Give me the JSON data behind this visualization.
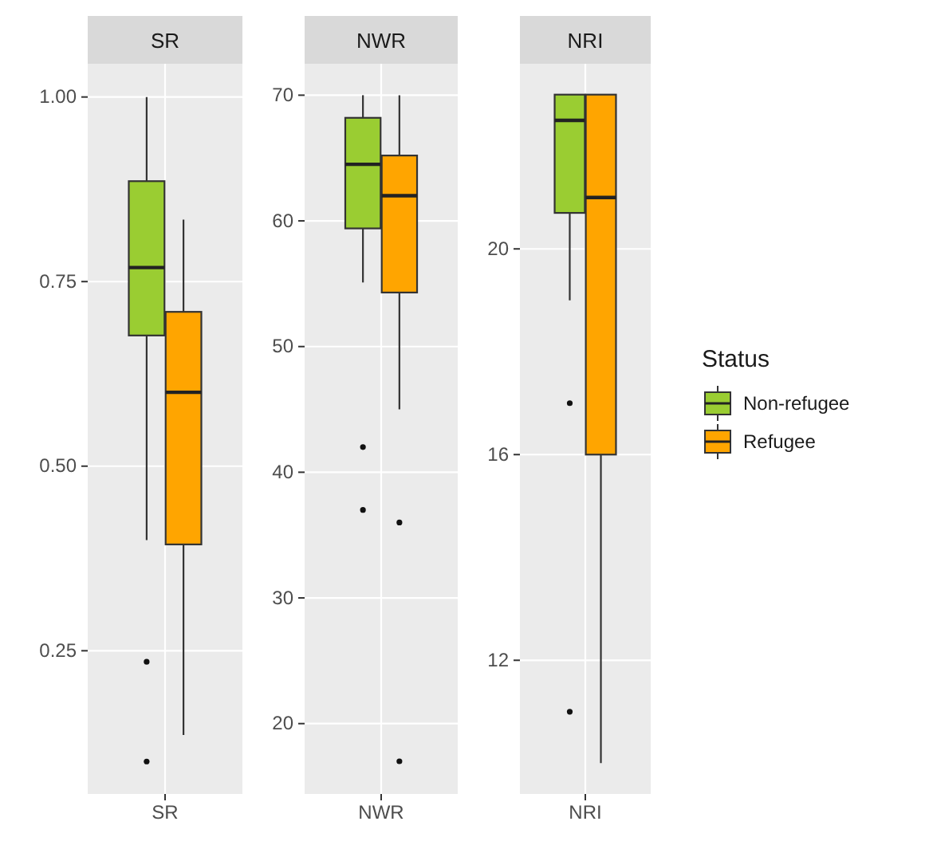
{
  "chart_data": [
    {
      "type": "box",
      "title": "SR",
      "categories": [
        "SR"
      ],
      "ylim": [
        0.056,
        1.045
      ],
      "yticks": [
        {
          "value": 0.25,
          "label": "0.25"
        },
        {
          "value": 0.5,
          "label": "0.50"
        },
        {
          "value": 0.75,
          "label": "0.75"
        },
        {
          "value": 1,
          "label": "1.00"
        }
      ],
      "grid": true,
      "legend": false,
      "series": [
        {
          "color": "#9acd32",
          "boxes": [
            {
              "low": 0.4,
              "q1": 0.677,
              "median": 0.769,
              "q3": 0.886,
              "high": 1.0,
              "outliers": [
                0.235,
                0.1
              ]
            }
          ]
        },
        {
          "color": "#ffa500",
          "boxes": [
            {
              "low": 0.136,
              "q1": 0.394,
              "median": 0.6,
              "q3": 0.709,
              "high": 0.834
            }
          ]
        }
      ]
    },
    {
      "type": "box",
      "title": "NWR",
      "categories": [
        "NWR"
      ],
      "ylim": [
        14.4,
        72.5
      ],
      "yticks": [
        20,
        30,
        40,
        50,
        60,
        70
      ],
      "grid": true,
      "legend": false,
      "series": [
        {
          "color": "#9acd32",
          "boxes": [
            {
              "low": 55.1,
              "q1": 59.4,
              "median": 64.5,
              "q3": 68.2,
              "high": 70,
              "outliers": [
                42,
                37
              ]
            }
          ]
        },
        {
          "color": "#ffa500",
          "boxes": [
            {
              "low": 45,
              "q1": 54.3,
              "median": 62,
              "q3": 65.2,
              "high": 70,
              "outliers": [
                36,
                17
              ]
            }
          ]
        }
      ]
    },
    {
      "type": "box",
      "title": "NRI",
      "categories": [
        "NRI"
      ],
      "ylim": [
        9.4,
        23.6
      ],
      "yticks": [
        12,
        16,
        20
      ],
      "grid": true,
      "legend": "right",
      "legend_title": "Status",
      "series": [
        {
          "name": "Non-refugee",
          "color": "#9acd32",
          "boxes": [
            {
              "low": 19,
              "q1": 20.7,
              "median": 22.5,
              "q3": 23,
              "high": 23,
              "outliers": [
                17,
                11
              ]
            }
          ]
        },
        {
          "name": "Refugee",
          "color": "#ffa500",
          "boxes": [
            {
              "low": 10,
              "q1": 16,
              "median": 21,
              "q3": 23,
              "high": 23
            }
          ]
        }
      ]
    }
  ]
}
